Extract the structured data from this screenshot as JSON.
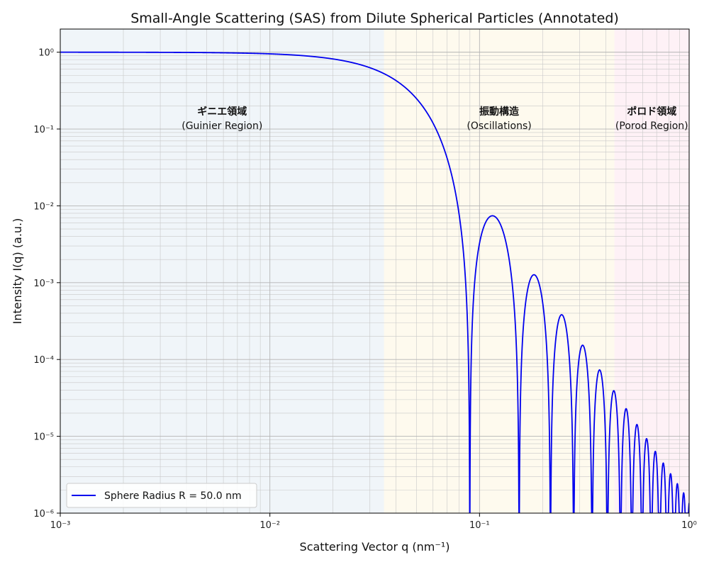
{
  "chart_data": {
    "type": "line",
    "title": "Small-Angle Scattering (SAS) from Dilute Spherical Particles (Annotated)",
    "xlabel": "Scattering Vector q (nm⁻¹)",
    "ylabel": "Intensity I(q) (a.u.)",
    "x_scale": "log",
    "y_scale": "log",
    "xlim": [
      0.001,
      1
    ],
    "ylim": [
      1e-06,
      2
    ],
    "x_ticks": [
      {
        "value": 0.001,
        "label": "10⁻³"
      },
      {
        "value": 0.01,
        "label": "10⁻²"
      },
      {
        "value": 0.1,
        "label": "10⁻¹"
      },
      {
        "value": 1,
        "label": "10⁰"
      }
    ],
    "y_ticks": [
      {
        "value": 1,
        "label": "10⁰"
      },
      {
        "value": 0.1,
        "label": "10⁻¹"
      },
      {
        "value": 0.01,
        "label": "10⁻²"
      },
      {
        "value": 0.001,
        "label": "10⁻³"
      },
      {
        "value": 0.0001,
        "label": "10⁻⁴"
      },
      {
        "value": 1e-05,
        "label": "10⁻⁵"
      },
      {
        "value": 1e-06,
        "label": "10⁻⁶"
      }
    ],
    "grid": "both, major and minor",
    "legend": {
      "placement": "lower-left",
      "entries": [
        "Sphere Radius R = 50.0 nm"
      ]
    },
    "series": [
      {
        "name": "Sphere Radius R = 50.0 nm",
        "color": "#0000ee",
        "model": "sphere form factor",
        "radius_nm": 50.0,
        "x": [
          0.001,
          0.005,
          0.01,
          0.02,
          0.03,
          0.035,
          0.05,
          0.07,
          0.09,
          0.115,
          0.18,
          0.245,
          0.31,
          0.37,
          0.44,
          0.5,
          0.56,
          0.62,
          0.69,
          0.75,
          0.81,
          0.88,
          0.94,
          1.0
        ],
        "y": [
          1.0,
          0.99,
          0.96,
          0.85,
          0.66,
          0.56,
          0.28,
          0.04,
          4e-06,
          0.0073,
          0.00125,
          0.00037,
          0.00015,
          7.2e-05,
          3.8e-05,
          2.2e-05,
          1.4e-05,
          9.2e-06,
          6.2e-06,
          4.4e-06,
          3.3e-06,
          2.4e-06,
          1.8e-06,
          1.4e-06
        ]
      }
    ],
    "regions": [
      {
        "name": "ギニエ領域",
        "subtitle": "(Guinier Region)",
        "q_range": [
          0.001,
          0.035
        ],
        "color": "#dde9f2"
      },
      {
        "name": "振動構造",
        "subtitle": "(Oscillations)",
        "q_range": [
          0.035,
          0.44
        ],
        "color": "#fdf3d9"
      },
      {
        "name": "ポロド領域",
        "subtitle": "(Porod Region)",
        "q_range": [
          0.44,
          1.0
        ],
        "color": "#fde0ea"
      }
    ]
  }
}
